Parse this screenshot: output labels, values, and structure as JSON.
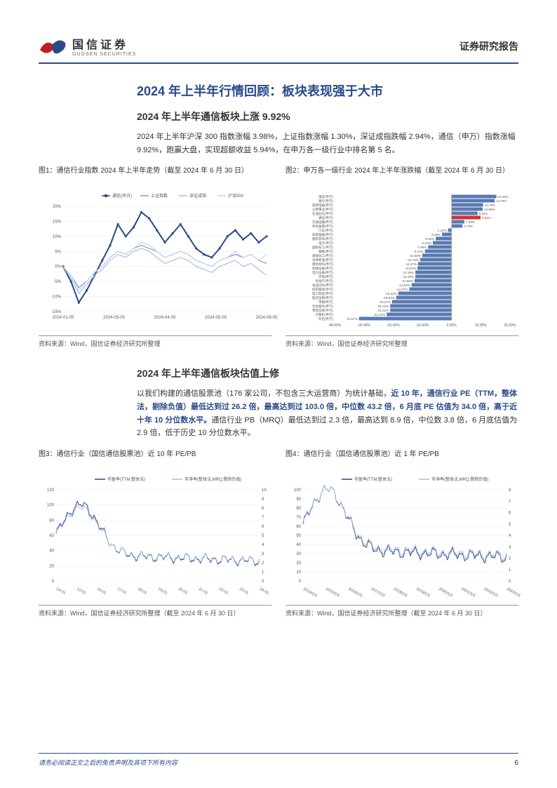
{
  "header": {
    "logo_cn": "国信证券",
    "logo_en": "GUOSEN SECURITIES",
    "right": "证券研究报告"
  },
  "section_title": "2024 年上半年行情回顾：板块表现强于大市",
  "sub1_title": "2024 年上半年通信板块上涨 9.92%",
  "para1": "2024 年上半年沪深 300 指数涨幅 3.98%，上证指数涨幅 1.30%，深证成指跌幅 2.94%，通信（申万）指数涨幅 9.92%，跑赢大盘，实现超额收益 5.94%，在申万各一级行业中排名第 5 名。",
  "chart1": {
    "caption": "图1：通信行业指数 2024 年上半年走势（截至 2024 年 6 月 30 日）",
    "legend": [
      "通信(申万)",
      "上证指数",
      "深证成指",
      "沪深300"
    ],
    "colors": [
      "#2a4a8a",
      "#7798d0",
      "#a8bde0",
      "#c5d3eb"
    ],
    "xlabels": [
      "2024-01-05",
      "2024-03-05",
      "2024-04-05",
      "2024-05-05",
      "2024-06-05"
    ],
    "ylabels": [
      "-15%",
      "-10%",
      "-5%",
      "0%",
      "5%",
      "10%",
      "15%",
      "20%"
    ],
    "ylim": [
      -15,
      20
    ],
    "series": [
      [
        0,
        -5,
        -12,
        -8,
        -3,
        2,
        7,
        14,
        10,
        13,
        18,
        16,
        12,
        8,
        11,
        14,
        10,
        6,
        4,
        3,
        6,
        10,
        12,
        9,
        11,
        8,
        10
      ],
      [
        0,
        -3,
        -7,
        -5,
        -2,
        0,
        3,
        5,
        4,
        6,
        7,
        6,
        5,
        3,
        4,
        5,
        4,
        2,
        1,
        0,
        2,
        3,
        4,
        3,
        4,
        2,
        1
      ],
      [
        0,
        -4,
        -9,
        -6,
        -3,
        -1,
        2,
        4,
        3,
        5,
        6,
        5,
        3,
        1,
        2,
        3,
        2,
        0,
        -1,
        -2,
        0,
        1,
        2,
        0,
        1,
        -1,
        -3
      ],
      [
        0,
        -3,
        -8,
        -5,
        -2,
        0,
        3,
        5,
        4,
        6,
        8,
        7,
        5,
        3,
        4,
        5,
        4,
        2,
        1,
        0,
        2,
        3,
        5,
        3,
        4,
        2,
        4
      ]
    ],
    "source": "资料来源：Wind，国信证券经济研究所整理"
  },
  "chart2": {
    "caption": "图2：申万各一级行业 2024 年上半年涨跌幅（截至 2024 年 6 月 30 日）",
    "categories": [
      "煤炭(申万)",
      "银行(申万)",
      "家用电器(申万)",
      "公用事业(申万)",
      "石油石化(申万)",
      "通信(申万)",
      "交通运输(申万)",
      "有色金属(申万)",
      "汽车(申万)",
      "非银金融(申万)",
      "建筑装饰(申万)",
      "电子(申万)",
      "国防军工(申万)",
      "钢铁(申万)",
      "基础化工(申万)",
      "农林牧渔(申万)",
      "建筑材料(申万)",
      "机械设备(申万)",
      "电力设备(申万)",
      "环保(申万)",
      "房地产(申万)",
      "食品饮料(申万)",
      "纺织服饰(申万)",
      "轻工制造(申万)",
      "医药生物(申万)",
      "传媒(申万)",
      "社会服务(申万)",
      "零售贸易(申万)",
      "计算机(申万)",
      "综合(申万)"
    ],
    "values": [
      15.35,
      14.76,
      10.78,
      10.66,
      8.91,
      9.92,
      4.39,
      3.73,
      -1.22,
      -3.25,
      -5.4,
      -6.4,
      -7.99,
      -9.1,
      -10.03,
      -10.74,
      -11.47,
      -11.67,
      -12.38,
      -12.39,
      -12.68,
      -13.64,
      -14.47,
      -18.23,
      -18.94,
      -20.37,
      -21.01,
      -21.01,
      -22.21,
      -31.67
    ],
    "highlight_index": 5,
    "bar_color": "#5a7ab0",
    "highlight_color": "#d03030",
    "xlim": [
      -40,
      20
    ],
    "xticks": [
      "-40.00%",
      "-30.00%",
      "-20.00%",
      "-10.00%",
      "0.00%",
      "10.00%",
      "20.00%"
    ],
    "source": "资料来源：Wind，国信证券经济研究所整理"
  },
  "sub2_title": "2024 年上半年通信板块估值上修",
  "para2_pre": "以我们构建的通信股票池（176 家公司，不包含三大运营商）为统计基础，",
  "para2_hl": "近 10 年，通信行业 PE（TTM，整体法，剔除负值）最低达到过 26.2 倍，最高达到过 103.0 倍，中位数 43.2 倍，6 月底 PE 估值为 34.0 倍，高于近十年 10 分位数水平。",
  "para2_post": "通信行业 PB（MRQ）最低达到过 2.3 倍，最高达到 8.9 倍，中位数 3.8 倍，6 月底估值为 2.9 倍，低于历史 10 分位数水平。",
  "chart3": {
    "caption": "图3：通信行业（国信通信股票池）近 10 年 PE/PB",
    "legend": [
      "市盈率(TTM,整体法)",
      "市净率(整体法,MRQ,剔除负值)"
    ],
    "colors": [
      "#2a4a8a",
      "#a8bde0"
    ],
    "xlabels": [
      "14-01",
      "15-01",
      "16-01",
      "17-01",
      "18-01",
      "19-01",
      "20-01",
      "21-01",
      "22-01",
      "23-01",
      "24-01"
    ],
    "y1labels": [
      "0",
      "20",
      "40",
      "60",
      "80",
      "100",
      "120"
    ],
    "y2labels": [
      "0",
      "1",
      "2",
      "3",
      "4",
      "5",
      "6",
      "7",
      "8",
      "9",
      "10"
    ],
    "source": "资料来源：Wind，国信证券经济研究所整理（截至 2024 年 6 月 30 日）"
  },
  "chart4": {
    "caption": "图4：通信行业（国信通信股票池）近 1 年 PE/PB",
    "legend": [
      "市盈率(TTM,整体法)",
      "市净率(整体法,MRQ,剔除负值)"
    ],
    "colors": [
      "#2a4a8a",
      "#a8bde0"
    ],
    "xlabels": [
      "2014/1/3",
      "2015/1/3",
      "2016/1/3",
      "2017/1/3",
      "2018/1/3",
      "2019/1/3",
      "2020/1/3",
      "2021/1/3",
      "2022/1/3",
      "2023/1/3"
    ],
    "y1labels": [
      "0",
      "10",
      "20",
      "30",
      "40",
      "50",
      "60",
      "70",
      "80",
      "90",
      "100"
    ],
    "y2labels": [
      "0",
      "1",
      "2",
      "3",
      "4",
      "5",
      "6",
      "7",
      "8"
    ],
    "source": "资料来源：Wind，国信证券经济研究所整理（截至 2024 年 6 月 30 日）"
  },
  "footer": {
    "text": "请务必阅读正文之后的免责声明及其项下所有内容",
    "page": "6"
  }
}
